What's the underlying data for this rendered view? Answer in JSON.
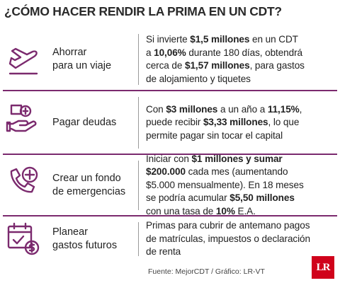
{
  "title": "¿CÓMO HACER RENDIR LA PRIMA EN UN CDT?",
  "rows": [
    {
      "label": [
        "Ahorrar",
        "para un viaje"
      ],
      "description": [
        [
          {
            "text": "Si invierte "
          },
          {
            "text": "$1,5 millones",
            "bold": true
          },
          {
            "text": " en un CDT"
          }
        ],
        [
          {
            "text": "a "
          },
          {
            "text": "10,06%",
            "bold": true
          },
          {
            "text": " durante 180 días, obtendrá"
          }
        ],
        [
          {
            "text": "cerca de "
          },
          {
            "text": "$1,57 millones",
            "bold": true
          },
          {
            "text": ", para gastos"
          }
        ],
        [
          {
            "text": "de alojamiento y tiquetes"
          }
        ]
      ]
    },
    {
      "label": [
        "Pagar deudas"
      ],
      "description": [
        [
          {
            "text": "Con "
          },
          {
            "text": "$3 millones",
            "bold": true
          },
          {
            "text": " a un año a "
          },
          {
            "text": "11,15%",
            "bold": true
          },
          {
            "text": ","
          }
        ],
        [
          {
            "text": "puede recibir "
          },
          {
            "text": "$3,33 millones",
            "bold": true
          },
          {
            "text": ", lo que"
          }
        ],
        [
          {
            "text": "permite pagar sin tocar el capital"
          }
        ]
      ]
    },
    {
      "label": [
        "Crear un fondo",
        "de emergencias"
      ],
      "description": [
        [
          {
            "text": "Iniciar con "
          },
          {
            "text": "$1 millones y sumar",
            "bold": true
          }
        ],
        [
          {
            "text": "$200.000",
            "bold": true
          },
          {
            "text": " cada mes (aumentando"
          }
        ],
        [
          {
            "text": "$5.000 mensualmente). En 18 meses"
          }
        ],
        [
          {
            "text": "se podría acumular "
          },
          {
            "text": "$5,50 millones",
            "bold": true
          }
        ],
        [
          {
            "text": "con una tasa de "
          },
          {
            "text": "10%",
            "bold": true
          },
          {
            "text": " E.A."
          }
        ]
      ]
    },
    {
      "label": [
        "Planear",
        "gastos futuros"
      ],
      "description": [
        [
          {
            "text": "Primas para cubrir de antemano pagos"
          }
        ],
        [
          {
            "text": "de matrículas, impuestos o declaración"
          }
        ],
        [
          {
            "text": "de renta"
          }
        ]
      ]
    }
  ],
  "footer": "Fuente: MejorCDT / Gráfico: LR-VT",
  "logo": "LR"
}
